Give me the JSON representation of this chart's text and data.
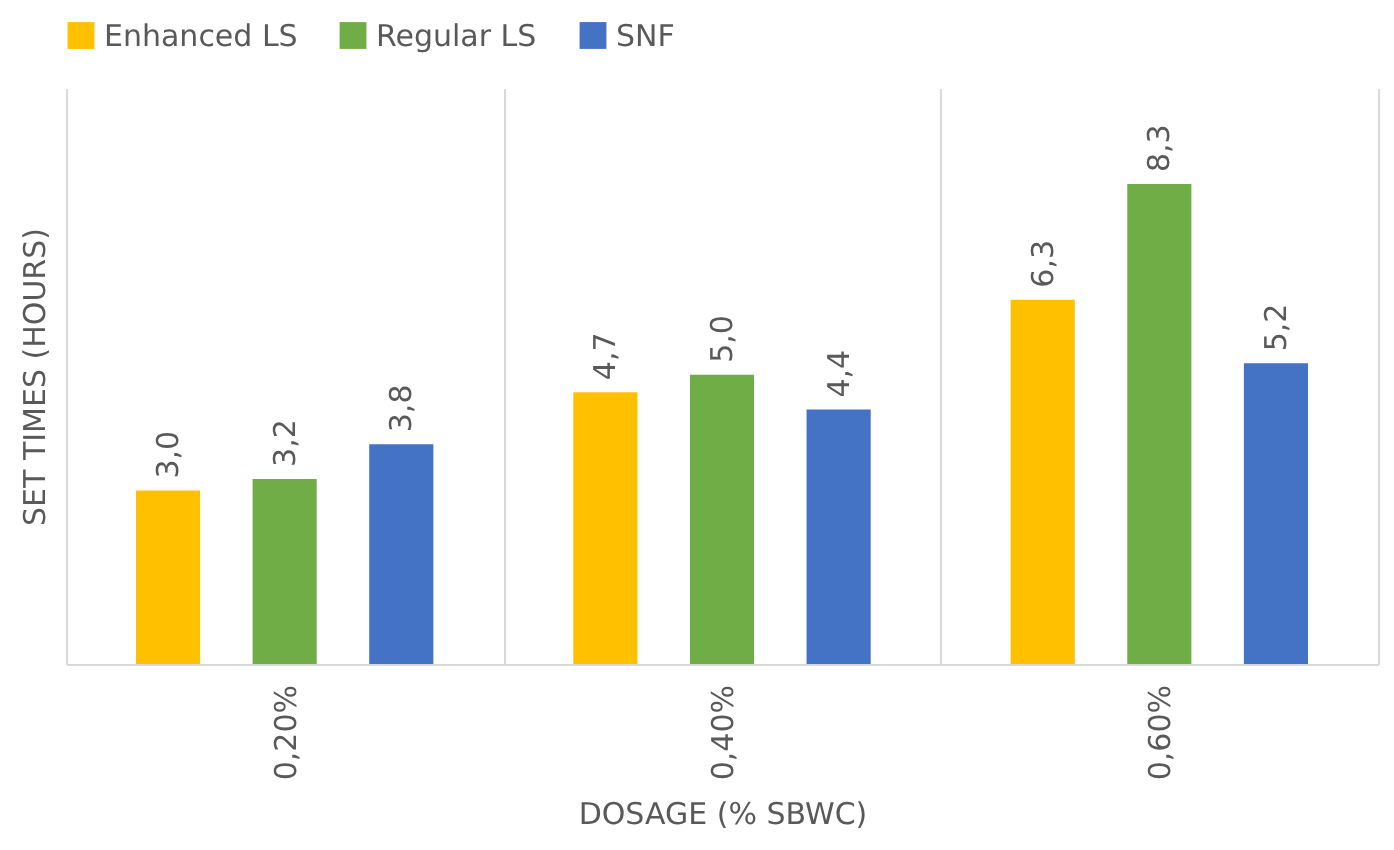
{
  "chart_data": {
    "type": "bar",
    "xlabel": "DOSAGE (% SBWC)",
    "ylabel": "SET TIMES (HOURS)",
    "categories": [
      "0,20%",
      "0,40%",
      "0,60%"
    ],
    "series": [
      {
        "name": "Enhanced LS",
        "color": "#ffc000",
        "values": [
          3.0,
          4.7,
          6.3
        ],
        "value_labels": [
          "3,0",
          "4,7",
          "6,3"
        ]
      },
      {
        "name": "Regular LS",
        "color": "#70ad47",
        "values": [
          3.2,
          5.0,
          8.3
        ],
        "value_labels": [
          "3,2",
          "5,0",
          "8,3"
        ]
      },
      {
        "name": "SNF",
        "color": "#4472c4",
        "values": [
          3.8,
          4.4,
          5.2
        ],
        "value_labels": [
          "3,8",
          "4,4",
          "5,2"
        ]
      }
    ],
    "grid": "x",
    "legend": "top"
  }
}
